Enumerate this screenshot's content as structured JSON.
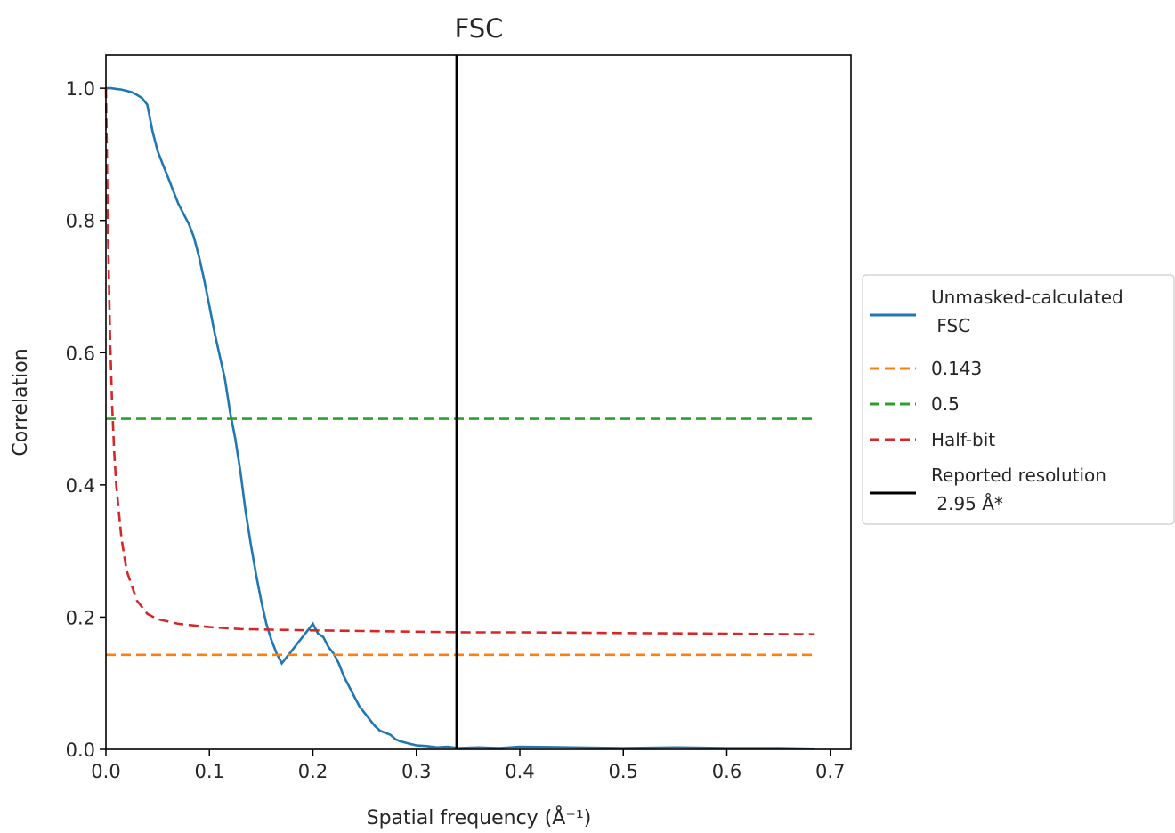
{
  "chart_data": {
    "type": "line",
    "title": "FSC",
    "xlabel": "Spatial frequency (Å⁻¹)",
    "ylabel": "Correlation",
    "xlim": [
      0.0,
      0.72
    ],
    "ylim": [
      0.0,
      1.05
    ],
    "xticks": [
      "0.0",
      "0.1",
      "0.2",
      "0.3",
      "0.4",
      "0.5",
      "0.6",
      "0.7"
    ],
    "yticks": [
      "0.0",
      "0.2",
      "0.4",
      "0.6",
      "0.8",
      "1.0"
    ],
    "grid": false,
    "legend_position": "right-outside",
    "series": [
      {
        "name": "Unmasked-calculated\n FSC",
        "style": "solid",
        "color": "#1f77b4",
        "x": [
          0.0,
          0.005,
          0.01,
          0.015,
          0.02,
          0.025,
          0.03,
          0.035,
          0.04,
          0.045,
          0.05,
          0.055,
          0.06,
          0.065,
          0.07,
          0.075,
          0.08,
          0.085,
          0.09,
          0.095,
          0.1,
          0.105,
          0.11,
          0.115,
          0.12,
          0.125,
          0.13,
          0.135,
          0.14,
          0.145,
          0.15,
          0.155,
          0.16,
          0.165,
          0.17,
          0.175,
          0.18,
          0.185,
          0.19,
          0.195,
          0.2,
          0.205,
          0.21,
          0.215,
          0.22,
          0.225,
          0.23,
          0.235,
          0.24,
          0.245,
          0.25,
          0.255,
          0.26,
          0.265,
          0.27,
          0.275,
          0.28,
          0.285,
          0.29,
          0.295,
          0.3,
          0.31,
          0.32,
          0.33,
          0.34,
          0.36,
          0.38,
          0.4,
          0.45,
          0.5,
          0.55,
          0.6,
          0.65,
          0.685
        ],
        "y": [
          1.0,
          1.0,
          0.999,
          0.998,
          0.996,
          0.994,
          0.99,
          0.985,
          0.975,
          0.935,
          0.905,
          0.885,
          0.865,
          0.845,
          0.825,
          0.81,
          0.795,
          0.775,
          0.745,
          0.71,
          0.67,
          0.63,
          0.595,
          0.56,
          0.51,
          0.47,
          0.42,
          0.36,
          0.31,
          0.265,
          0.225,
          0.19,
          0.165,
          0.145,
          0.13,
          0.14,
          0.15,
          0.16,
          0.17,
          0.18,
          0.19,
          0.175,
          0.17,
          0.155,
          0.145,
          0.13,
          0.11,
          0.095,
          0.08,
          0.065,
          0.055,
          0.045,
          0.035,
          0.028,
          0.025,
          0.022,
          0.015,
          0.012,
          0.01,
          0.008,
          0.006,
          0.005,
          0.003,
          0.004,
          0.002,
          0.003,
          0.002,
          0.004,
          0.003,
          0.002,
          0.003,
          0.002,
          0.002,
          0.001
        ]
      },
      {
        "name": "0.143",
        "style": "dashed",
        "color": "#ff7f0e",
        "x": [
          0.0,
          0.685
        ],
        "y": [
          0.143,
          0.143
        ]
      },
      {
        "name": "0.5",
        "style": "dashed",
        "color": "#2ca02c",
        "x": [
          0.0,
          0.685
        ],
        "y": [
          0.5,
          0.5
        ]
      },
      {
        "name": "Half-bit",
        "style": "dashed",
        "color": "#d62728",
        "x": [
          0.0,
          0.002,
          0.004,
          0.006,
          0.008,
          0.01,
          0.015,
          0.02,
          0.03,
          0.04,
          0.05,
          0.07,
          0.1,
          0.13,
          0.16,
          0.2,
          0.25,
          0.3,
          0.35,
          0.4,
          0.5,
          0.6,
          0.685
        ],
        "y": [
          1.0,
          0.78,
          0.62,
          0.52,
          0.45,
          0.4,
          0.32,
          0.27,
          0.225,
          0.205,
          0.197,
          0.19,
          0.185,
          0.182,
          0.181,
          0.18,
          0.179,
          0.178,
          0.177,
          0.177,
          0.176,
          0.175,
          0.174
        ]
      },
      {
        "name": "Reported resolution\n 2.95 Å*",
        "style": "vertical",
        "color": "#000000",
        "x": [
          0.339,
          0.339
        ],
        "y": [
          0.0,
          1.05
        ]
      }
    ]
  }
}
